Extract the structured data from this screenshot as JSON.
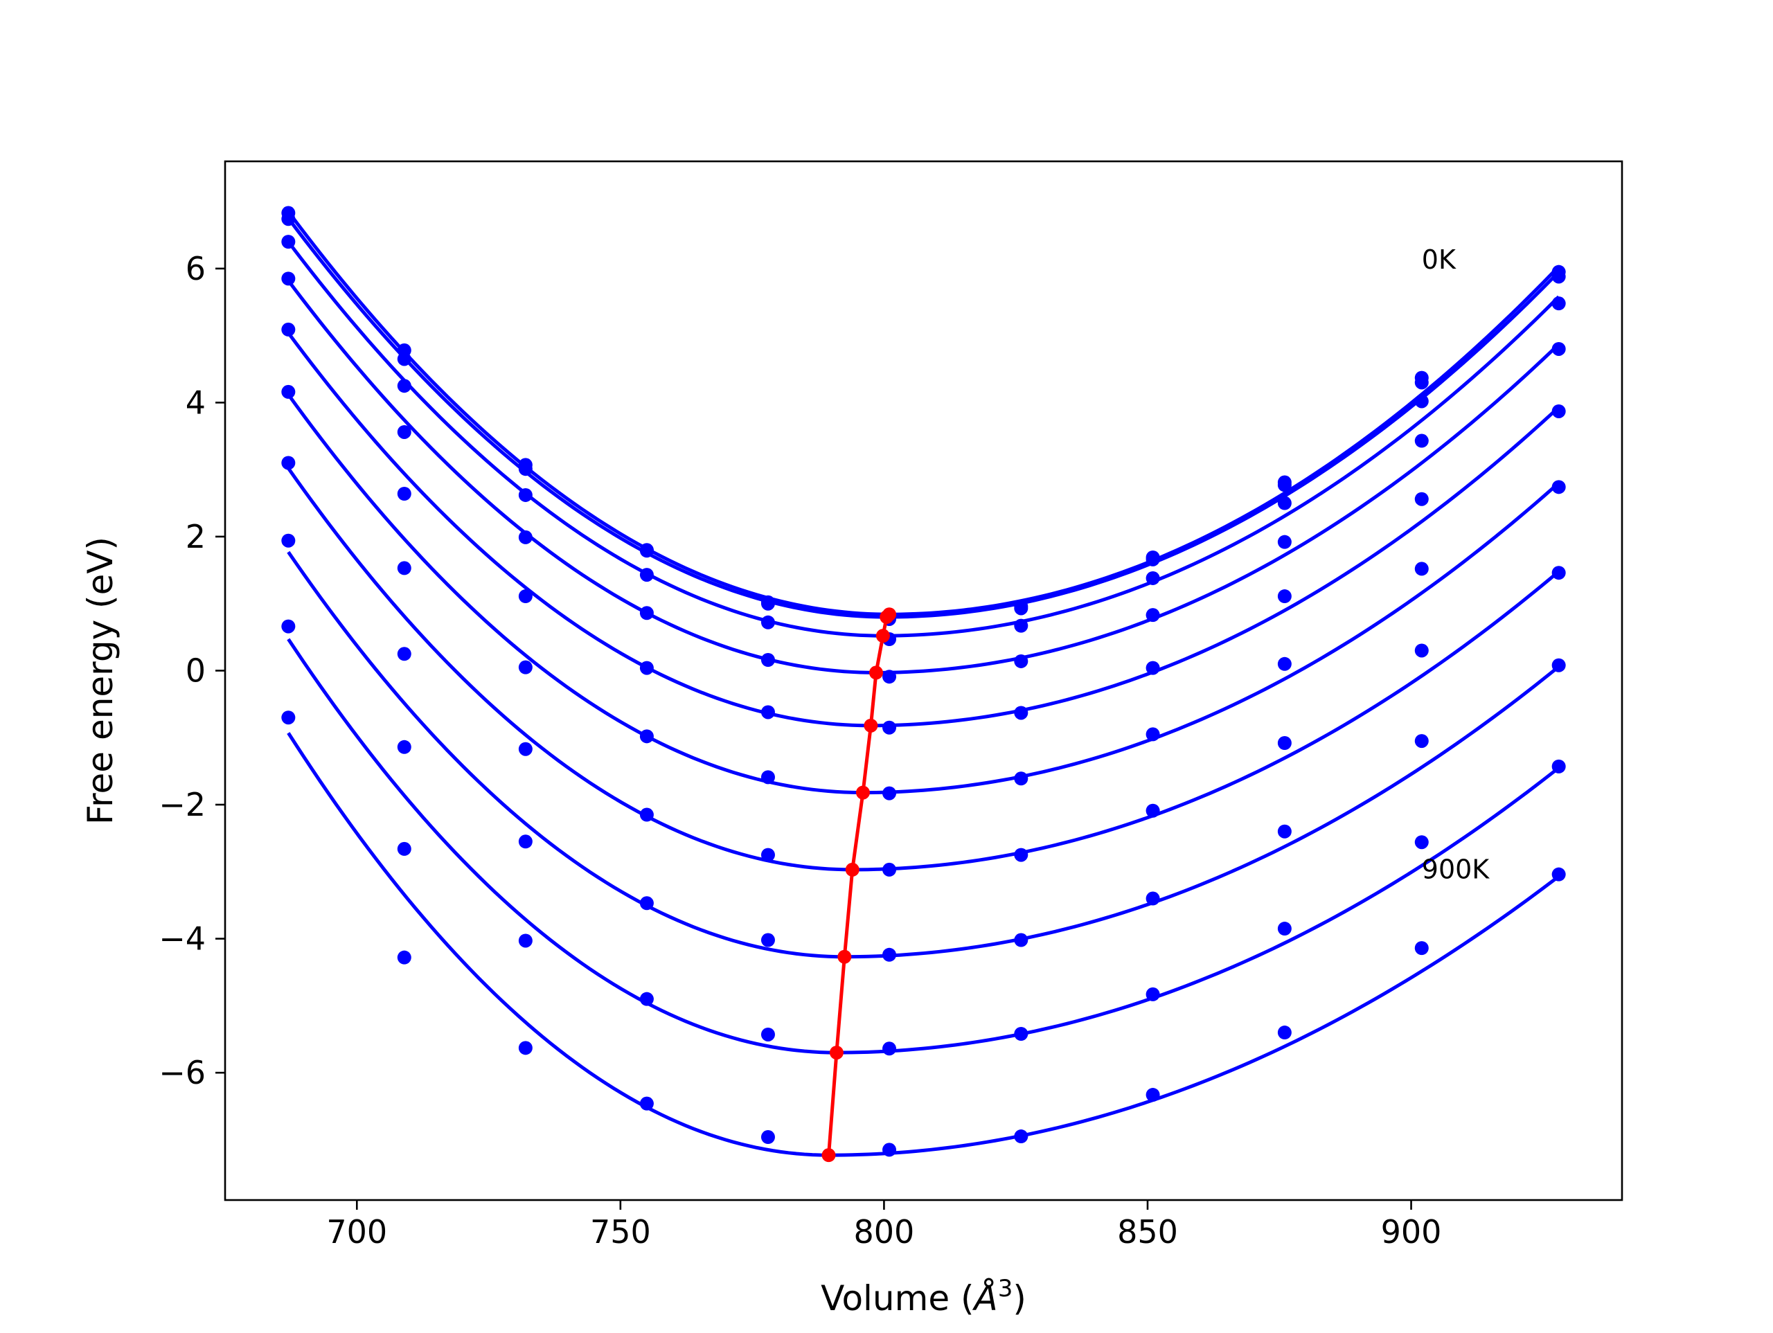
{
  "chart_data": {
    "type": "line",
    "title": "",
    "xlabel": "Volume (Å³)",
    "xlabel_parts": {
      "text": "Volume (",
      "symbol": "Å",
      "sup": "3",
      "close": ")"
    },
    "ylabel": "Free energy (eV)",
    "xlim": [
      675,
      940
    ],
    "ylim": [
      -7.9,
      7.6
    ],
    "xticks": [
      700,
      750,
      800,
      850,
      900
    ],
    "xtick_labels": [
      "700",
      "750",
      "800",
      "850",
      "900"
    ],
    "yticks": [
      6,
      4,
      2,
      0,
      -2,
      -4,
      -6
    ],
    "ytick_labels": [
      "6",
      "4",
      "2",
      "0",
      "−2",
      "−4",
      "−6"
    ],
    "grid": false,
    "legend": "none",
    "annotations": [
      {
        "text": "0K",
        "x": 902,
        "y": 6.0
      },
      {
        "text": "900K",
        "x": 902,
        "y": -3.1
      }
    ],
    "colors": {
      "curves": "#0000ff",
      "points": "#0000ff",
      "minimum_line": "#ff0000"
    },
    "x": [
      687,
      709,
      732,
      755,
      778,
      801,
      826,
      851,
      876,
      902,
      928
    ],
    "series": [
      {
        "values": [
          6.83,
          4.78,
          3.07,
          1.8,
          1.02,
          0.8,
          0.96,
          1.69,
          2.81,
          4.37,
          5.95
        ]
      },
      {
        "values": [
          6.74,
          4.65,
          3.01,
          1.79,
          1.0,
          0.77,
          0.93,
          1.66,
          2.77,
          4.3,
          5.88
        ]
      },
      {
        "values": [
          6.4,
          4.25,
          2.62,
          1.43,
          0.72,
          0.47,
          0.67,
          1.38,
          2.5,
          4.02,
          5.48
        ]
      },
      {
        "values": [
          5.85,
          3.56,
          1.99,
          0.86,
          0.16,
          -0.09,
          0.14,
          0.83,
          1.92,
          3.43,
          4.8
        ]
      },
      {
        "values": [
          5.09,
          2.64,
          1.11,
          0.04,
          -0.62,
          -0.85,
          -0.63,
          0.04,
          1.11,
          2.56,
          3.87
        ]
      },
      {
        "values": [
          4.16,
          1.53,
          0.05,
          -0.98,
          -1.59,
          -1.83,
          -1.61,
          -0.95,
          0.1,
          1.52,
          2.74
        ]
      },
      {
        "values": [
          3.1,
          0.25,
          -1.17,
          -2.15,
          -2.75,
          -2.97,
          -2.75,
          -2.09,
          -1.08,
          0.3,
          1.46
        ]
      },
      {
        "values": [
          1.94,
          -1.14,
          -2.55,
          -3.47,
          -4.02,
          -4.24,
          -4.02,
          -3.4,
          -2.4,
          -1.05,
          0.08
        ]
      },
      {
        "values": [
          0.66,
          -2.66,
          -4.03,
          -4.9,
          -5.43,
          -5.64,
          -5.42,
          -4.83,
          -3.85,
          -2.56,
          -1.43
        ]
      },
      {
        "values": [
          -0.7,
          -4.28,
          -5.63,
          -6.46,
          -6.96,
          -7.15,
          -6.95,
          -6.33,
          -5.4,
          -4.14,
          -3.04
        ]
      }
    ],
    "fits": [
      {
        "v0": 801.0,
        "f0": 0.84,
        "left": 6.85,
        "right": 6.03
      },
      {
        "v0": 800.5,
        "f0": 0.8,
        "left": 6.75,
        "right": 5.95
      },
      {
        "v0": 799.8,
        "f0": 0.52,
        "left": 6.4,
        "right": 5.58
      },
      {
        "v0": 798.5,
        "f0": -0.03,
        "left": 5.82,
        "right": 4.87
      },
      {
        "v0": 797.5,
        "f0": -0.82,
        "left": 5.04,
        "right": 3.93
      },
      {
        "v0": 796.0,
        "f0": -1.82,
        "left": 4.12,
        "right": 2.8
      },
      {
        "v0": 794.0,
        "f0": -2.97,
        "left": 3.02,
        "right": 1.48
      },
      {
        "v0": 792.5,
        "f0": -4.27,
        "left": 1.77,
        "right": 0.06
      },
      {
        "v0": 791.0,
        "f0": -5.7,
        "left": 0.47,
        "right": -1.45
      },
      {
        "v0": 789.5,
        "f0": -7.23,
        "left": -0.93,
        "right": -3.07
      }
    ],
    "minimum_line": {
      "x": [
        801.0,
        800.5,
        799.8,
        798.5,
        797.5,
        796.0,
        794.0,
        792.5,
        791.0,
        789.5
      ],
      "y": [
        0.84,
        0.8,
        0.52,
        -0.03,
        -0.82,
        -1.82,
        -2.97,
        -4.27,
        -5.7,
        -7.23
      ]
    },
    "fit_range": [
      687,
      928
    ]
  }
}
